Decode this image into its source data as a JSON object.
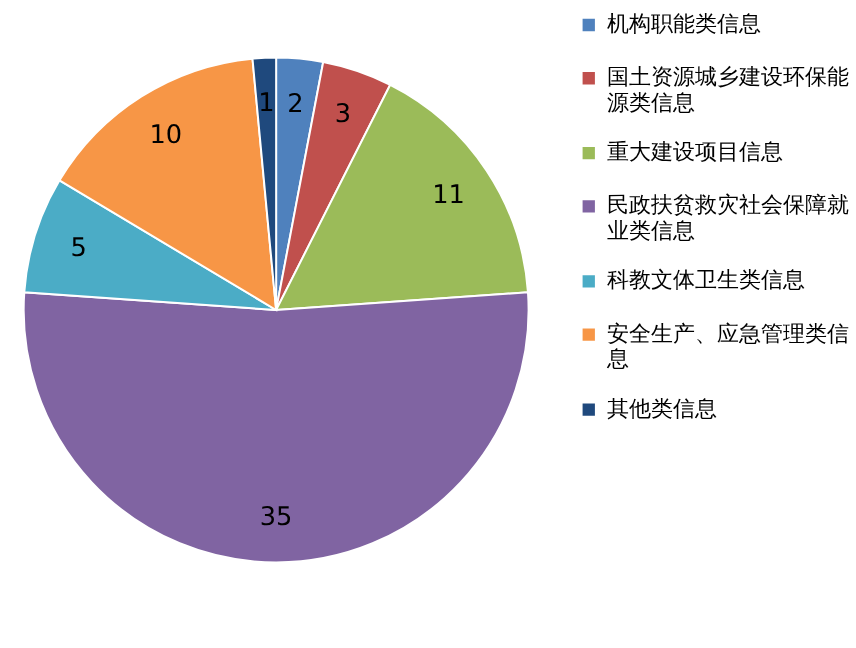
{
  "chart_data": {
    "type": "pie",
    "categories": [
      "机构职能类信息",
      "国土资源城乡建设环保能源类信息",
      "重大建设项目信息",
      "民政扶贫救灾社会保障就业类信息",
      "科教文体卫生类信息",
      "安全生产、应急管理类信息",
      "其他类信息"
    ],
    "values": [
      2,
      3,
      11,
      35,
      5,
      10,
      1
    ],
    "colors": [
      "#4f81bd",
      "#c0504d",
      "#9bbb59",
      "#8064a2",
      "#4bacc6",
      "#f79646",
      "#1f497d"
    ],
    "data_labels": true,
    "legend": "right"
  }
}
